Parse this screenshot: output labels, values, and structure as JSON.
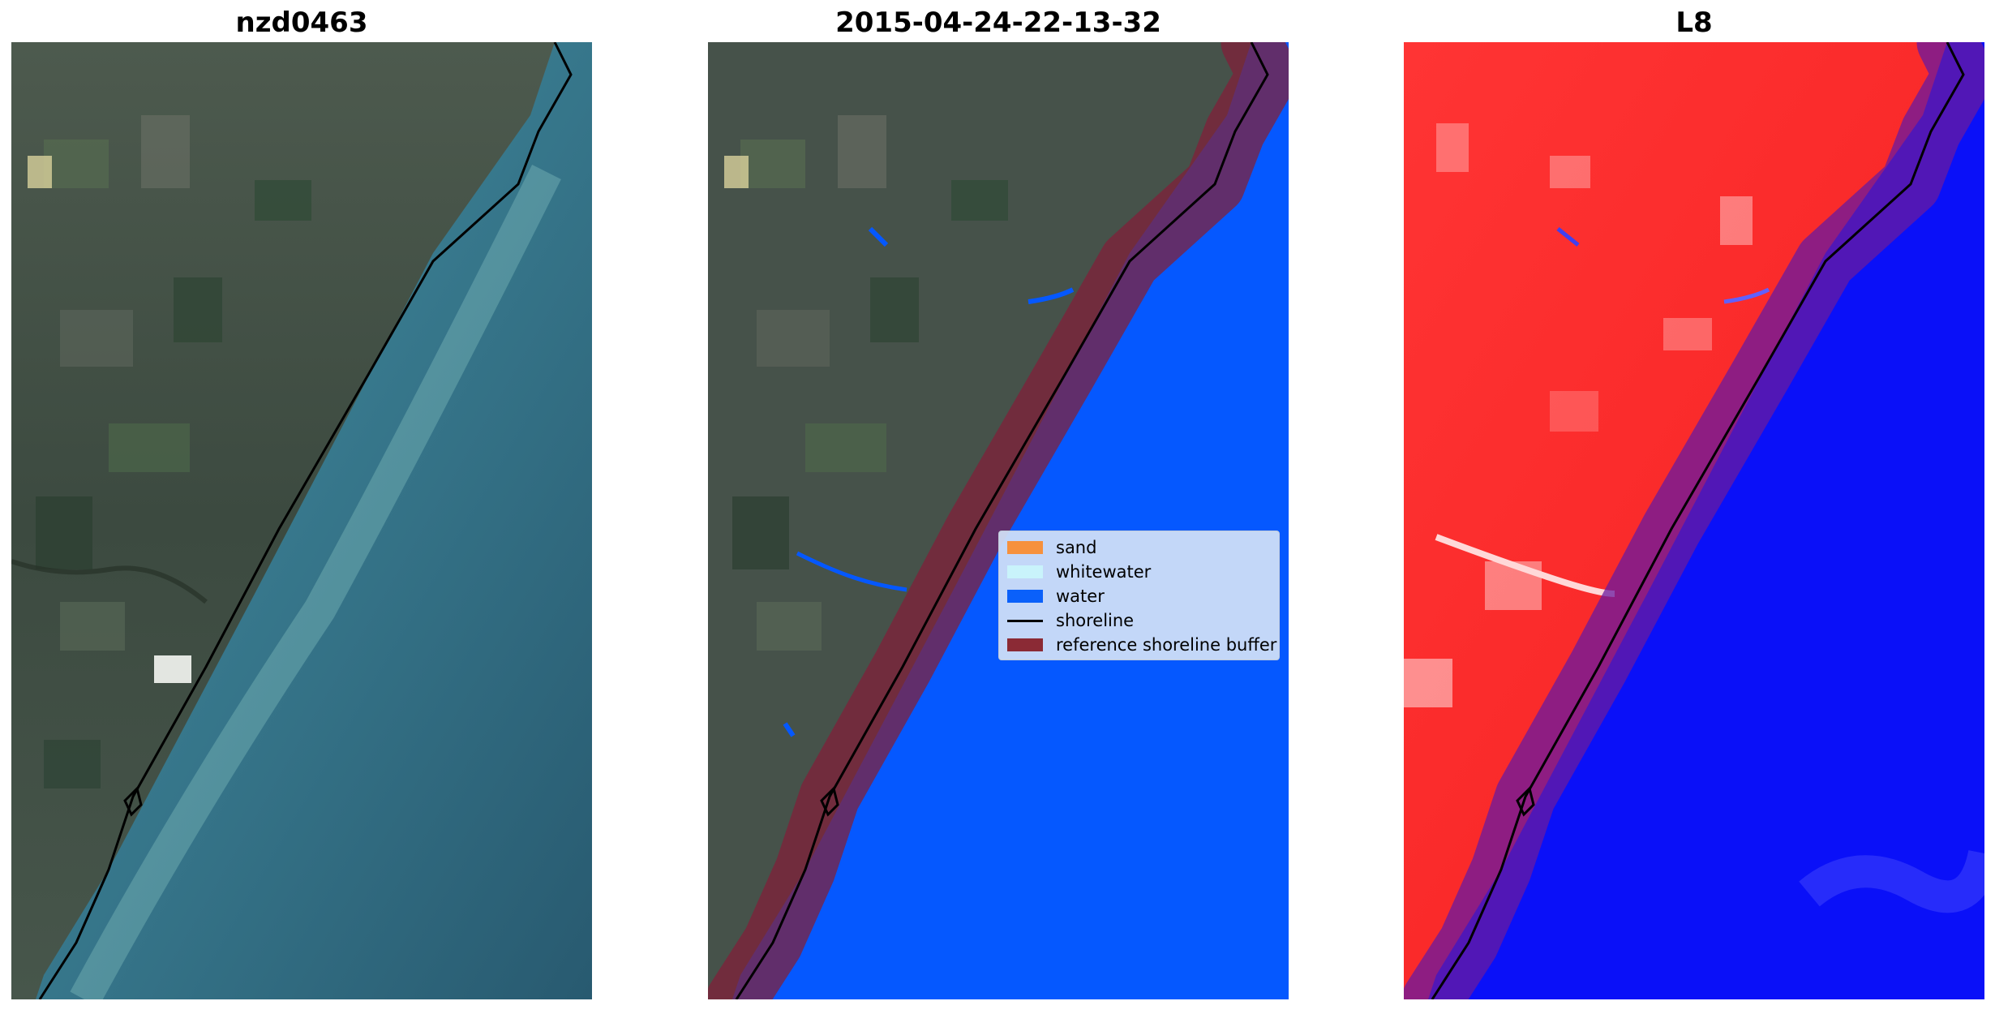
{
  "panels": [
    {
      "title": "nzd0463"
    },
    {
      "title": "2015-04-24-22-13-32"
    },
    {
      "title": "L8"
    }
  ],
  "legend": {
    "entries": [
      {
        "label": "sand",
        "color": "#f6913d"
      },
      {
        "label": "whitewater",
        "color": "#c9f3fb"
      },
      {
        "label": "water",
        "color": "#0a60fa"
      },
      {
        "label": "shoreline",
        "color": "#000000"
      },
      {
        "label": "reference shoreline buffer",
        "color": "#8b2a35"
      }
    ]
  },
  "colors": {
    "land": "#3f4b42",
    "sea": "#2c6479",
    "classified_water": "#0558ff",
    "buffer": "#80203a",
    "index_land": "#fa2a2a",
    "index_water": "#0a10f8"
  }
}
